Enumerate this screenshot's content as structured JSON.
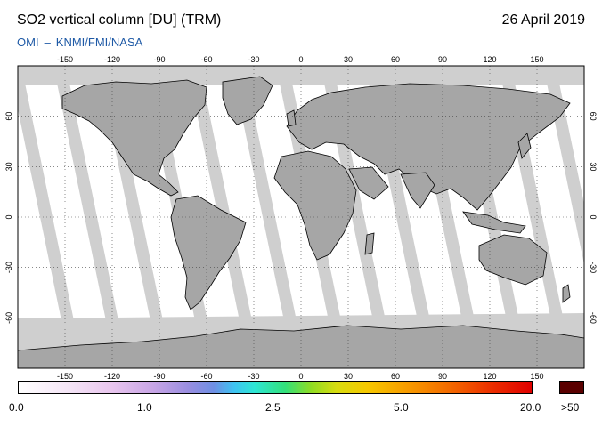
{
  "header": {
    "title": "SO2 vertical column [DU] (TRM)",
    "date": "26 April 2019",
    "credit_left": "OMI",
    "credit_sep": "–",
    "credit_right": "KNMI/FMI/NASA"
  },
  "map": {
    "projection": "equirectangular",
    "lon_ticks": [
      "-150",
      "-120",
      "-90",
      "-60",
      "-30",
      "0",
      "30",
      "60",
      "90",
      "120",
      "150"
    ],
    "lat_ticks": [
      "60",
      "30",
      "0",
      "-30",
      "-60"
    ],
    "colors": {
      "land_coverage": "#a6a6a6",
      "swath_gap": "#cfcfcf",
      "ocean_data": "#ffffff",
      "coastline": "#000000"
    }
  },
  "colorbar": {
    "labels": [
      "0.0",
      "1.0",
      "2.5",
      "5.0",
      "20.0"
    ],
    "over_label": ">50",
    "over_color": "#5a0000"
  }
}
